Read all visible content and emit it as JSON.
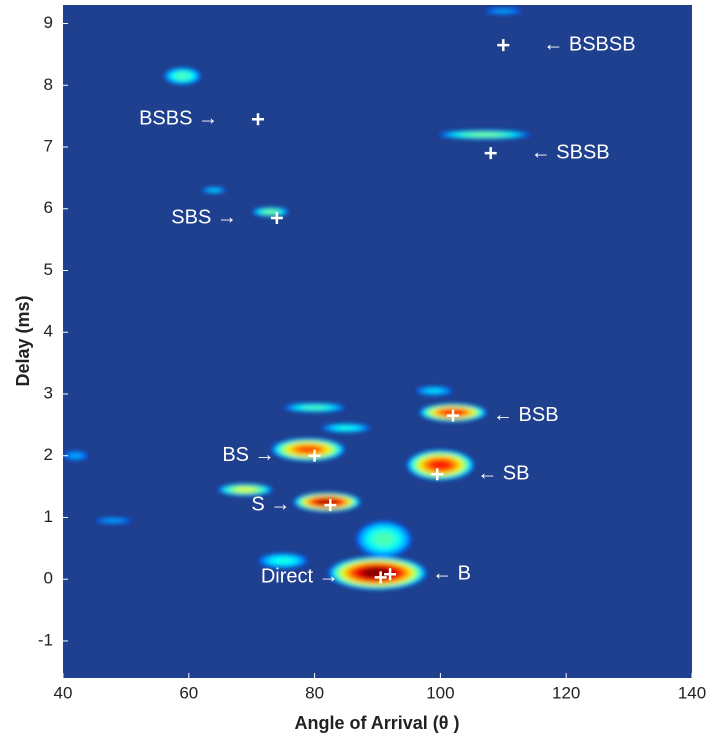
{
  "chart_data": {
    "type": "heatmap",
    "x_label": "Angle of Arrival (θ )",
    "y_label": "Delay (ms)",
    "xlim": [
      40,
      140
    ],
    "xticks": [
      40,
      60,
      80,
      100,
      120,
      140
    ],
    "ylim": [
      -1.6,
      9.3
    ],
    "yticks": [
      -1,
      0,
      1,
      2,
      3,
      4,
      5,
      6,
      7,
      8,
      9
    ],
    "background": "#1f3f8f",
    "blobs": [
      {
        "x": 90,
        "y": 0.1,
        "width": 16,
        "height": 0.55,
        "peak": 1.0
      },
      {
        "x": 91,
        "y": 0.65,
        "width": 9,
        "height": 0.6,
        "peak": 0.45
      },
      {
        "x": 75,
        "y": 0.3,
        "width": 8,
        "height": 0.25,
        "peak": 0.4
      },
      {
        "x": 82,
        "y": 1.25,
        "width": 11,
        "height": 0.32,
        "peak": 0.95
      },
      {
        "x": 69,
        "y": 1.45,
        "width": 9,
        "height": 0.2,
        "peak": 0.6
      },
      {
        "x": 79,
        "y": 2.1,
        "width": 12,
        "height": 0.38,
        "peak": 0.8
      },
      {
        "x": 100,
        "y": 1.85,
        "width": 11,
        "height": 0.5,
        "peak": 0.85
      },
      {
        "x": 102,
        "y": 2.7,
        "width": 11,
        "height": 0.3,
        "peak": 0.85
      },
      {
        "x": 80,
        "y": 2.78,
        "width": 10,
        "height": 0.15,
        "peak": 0.45
      },
      {
        "x": 99,
        "y": 3.05,
        "width": 6,
        "height": 0.15,
        "peak": 0.35
      },
      {
        "x": 85,
        "y": 2.45,
        "width": 8,
        "height": 0.15,
        "peak": 0.4
      },
      {
        "x": 48,
        "y": 0.95,
        "width": 6,
        "height": 0.1,
        "peak": 0.3
      },
      {
        "x": 59,
        "y": 8.15,
        "width": 6,
        "height": 0.28,
        "peak": 0.45
      },
      {
        "x": 107,
        "y": 7.2,
        "width": 15,
        "height": 0.15,
        "peak": 0.5
      },
      {
        "x": 73,
        "y": 5.95,
        "width": 6,
        "height": 0.15,
        "peak": 0.5
      },
      {
        "x": 64,
        "y": 6.3,
        "width": 4,
        "height": 0.1,
        "peak": 0.35
      },
      {
        "x": 42,
        "y": 2.0,
        "width": 4,
        "height": 0.15,
        "peak": 0.3
      },
      {
        "x": 110,
        "y": 9.2,
        "width": 6,
        "height": 0.1,
        "peak": 0.3
      }
    ],
    "annotations": [
      {
        "text": "← BSBSB",
        "x": 110,
        "y": 8.65
      },
      {
        "text": "BSBS →",
        "x": 71,
        "y": 7.45
      },
      {
        "text": "← SBSB",
        "x": 108,
        "y": 6.9
      },
      {
        "text": "SBS →",
        "x": 74,
        "y": 5.85
      },
      {
        "text": "← BSB",
        "x": 102,
        "y": 2.65
      },
      {
        "text": "BS →",
        "x": 80,
        "y": 2.0
      },
      {
        "text": "← SB",
        "x": 99.5,
        "y": 1.7
      },
      {
        "text": "S →",
        "x": 82.5,
        "y": 1.2
      },
      {
        "text": "Direct →",
        "x": 90.5,
        "y": 0.03
      },
      {
        "text": "← B",
        "x": 92,
        "y": 0.08
      }
    ]
  }
}
